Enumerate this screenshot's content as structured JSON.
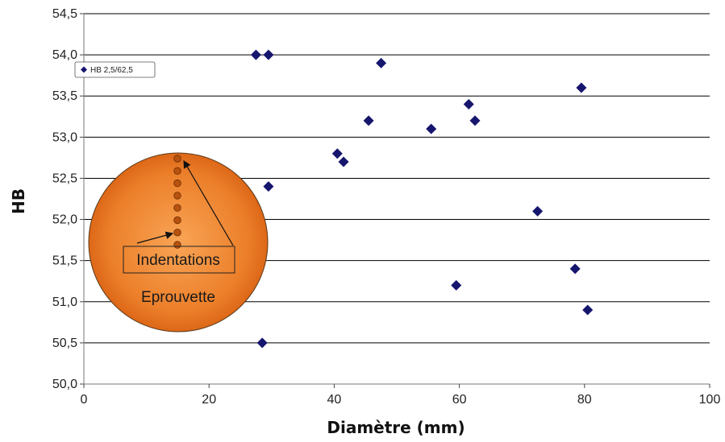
{
  "colors": {
    "marker": "#16166e",
    "gridline": "#000000",
    "ball_light": "#f7a04a",
    "ball_dark": "#d9600f",
    "indent_dot": "#b9520e"
  },
  "chart_data": {
    "type": "scatter",
    "xlabel": "Diamètre (mm)",
    "ylabel": "HB",
    "xlim": [
      0,
      100
    ],
    "ylim": [
      50.0,
      54.5
    ],
    "x_ticks": [
      "0",
      "20",
      "40",
      "60",
      "80",
      "100"
    ],
    "y_ticks": [
      "50,0",
      "50,5",
      "51,0",
      "51,5",
      "52,0",
      "52,5",
      "53,0",
      "53,5",
      "54,0",
      "54,5"
    ],
    "grid": "horizontal",
    "legend_position": "left",
    "series": [
      {
        "name": "HB 2,5/62,5",
        "marker": "diamond",
        "points": [
          {
            "x": 27.5,
            "y": 54.0
          },
          {
            "x": 29.5,
            "y": 54.0
          },
          {
            "x": 47.5,
            "y": 53.9
          },
          {
            "x": 79.5,
            "y": 53.6
          },
          {
            "x": 61.5,
            "y": 53.4
          },
          {
            "x": 45.5,
            "y": 53.2
          },
          {
            "x": 62.5,
            "y": 53.2
          },
          {
            "x": 55.5,
            "y": 53.1
          },
          {
            "x": 40.5,
            "y": 52.8
          },
          {
            "x": 41.5,
            "y": 52.7
          },
          {
            "x": 29.5,
            "y": 52.4
          },
          {
            "x": 72.5,
            "y": 52.1
          },
          {
            "x": 78.5,
            "y": 51.4
          },
          {
            "x": 59.5,
            "y": 51.2
          },
          {
            "x": 80.5,
            "y": 50.9
          },
          {
            "x": 28.5,
            "y": 50.5
          }
        ]
      }
    ]
  },
  "inset": {
    "indentations_label": "Indentations",
    "specimen_label": "Eprouvette",
    "indentation_count": 8
  }
}
